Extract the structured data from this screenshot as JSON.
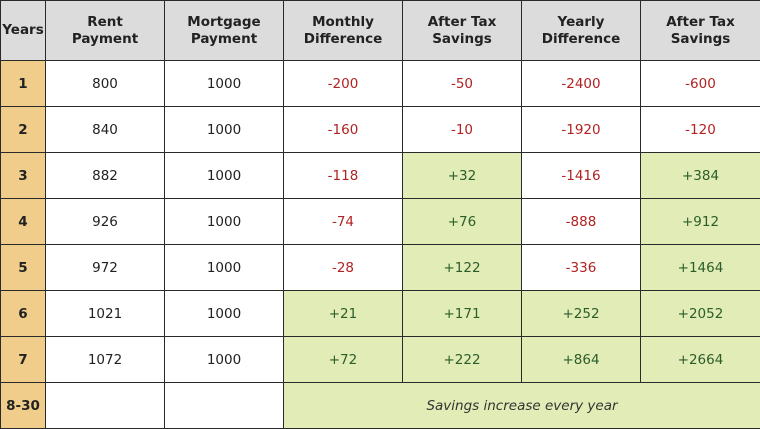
{
  "headers": {
    "years": "Years",
    "rent_line1": "Rent",
    "rent_line2": "Payment",
    "mortgage_line1": "Mortgage",
    "mortgage_line2": "Payment",
    "monthly_line1": "Monthly",
    "monthly_line2": "Difference",
    "after_tax_line1": "After Tax",
    "after_tax_line2": "Savings",
    "yearly_line1": "Yearly",
    "yearly_line2": "Difference",
    "after_tax2_line1": "After Tax",
    "after_tax2_line2": "Savings"
  },
  "rows": [
    {
      "year": "1",
      "rent": "800",
      "mortgage": "1000",
      "monthly_diff": "-200",
      "after_tax_monthly": "-50",
      "yearly_diff": "-2400",
      "after_tax_yearly": "-600"
    },
    {
      "year": "2",
      "rent": "840",
      "mortgage": "1000",
      "monthly_diff": "-160",
      "after_tax_monthly": "-10",
      "yearly_diff": "-1920",
      "after_tax_yearly": "-120"
    },
    {
      "year": "3",
      "rent": "882",
      "mortgage": "1000",
      "monthly_diff": "-118",
      "after_tax_monthly": "+32",
      "yearly_diff": "-1416",
      "after_tax_yearly": "+384"
    },
    {
      "year": "4",
      "rent": "926",
      "mortgage": "1000",
      "monthly_diff": "-74",
      "after_tax_monthly": "+76",
      "yearly_diff": "-888",
      "after_tax_yearly": "+912"
    },
    {
      "year": "5",
      "rent": "972",
      "mortgage": "1000",
      "monthly_diff": "-28",
      "after_tax_monthly": "+122",
      "yearly_diff": "-336",
      "after_tax_yearly": "+1464"
    },
    {
      "year": "6",
      "rent": "1021",
      "mortgage": "1000",
      "monthly_diff": "+21",
      "after_tax_monthly": "+171",
      "yearly_diff": "+252",
      "after_tax_yearly": "+2052"
    },
    {
      "year": "7",
      "rent": "1072",
      "mortgage": "1000",
      "monthly_diff": "+72",
      "after_tax_monthly": "+222",
      "yearly_diff": "+864",
      "after_tax_yearly": "+2664"
    }
  ],
  "last_row": {
    "year": "8-30",
    "note": "Savings increase every year"
  },
  "colors": {
    "header_bg": "#dcdcdc",
    "year_bg": "#f0cd8a",
    "savings_bg": "#e2ecb6",
    "negative_text": "#b22222",
    "positive_text": "#2b5d2b"
  }
}
